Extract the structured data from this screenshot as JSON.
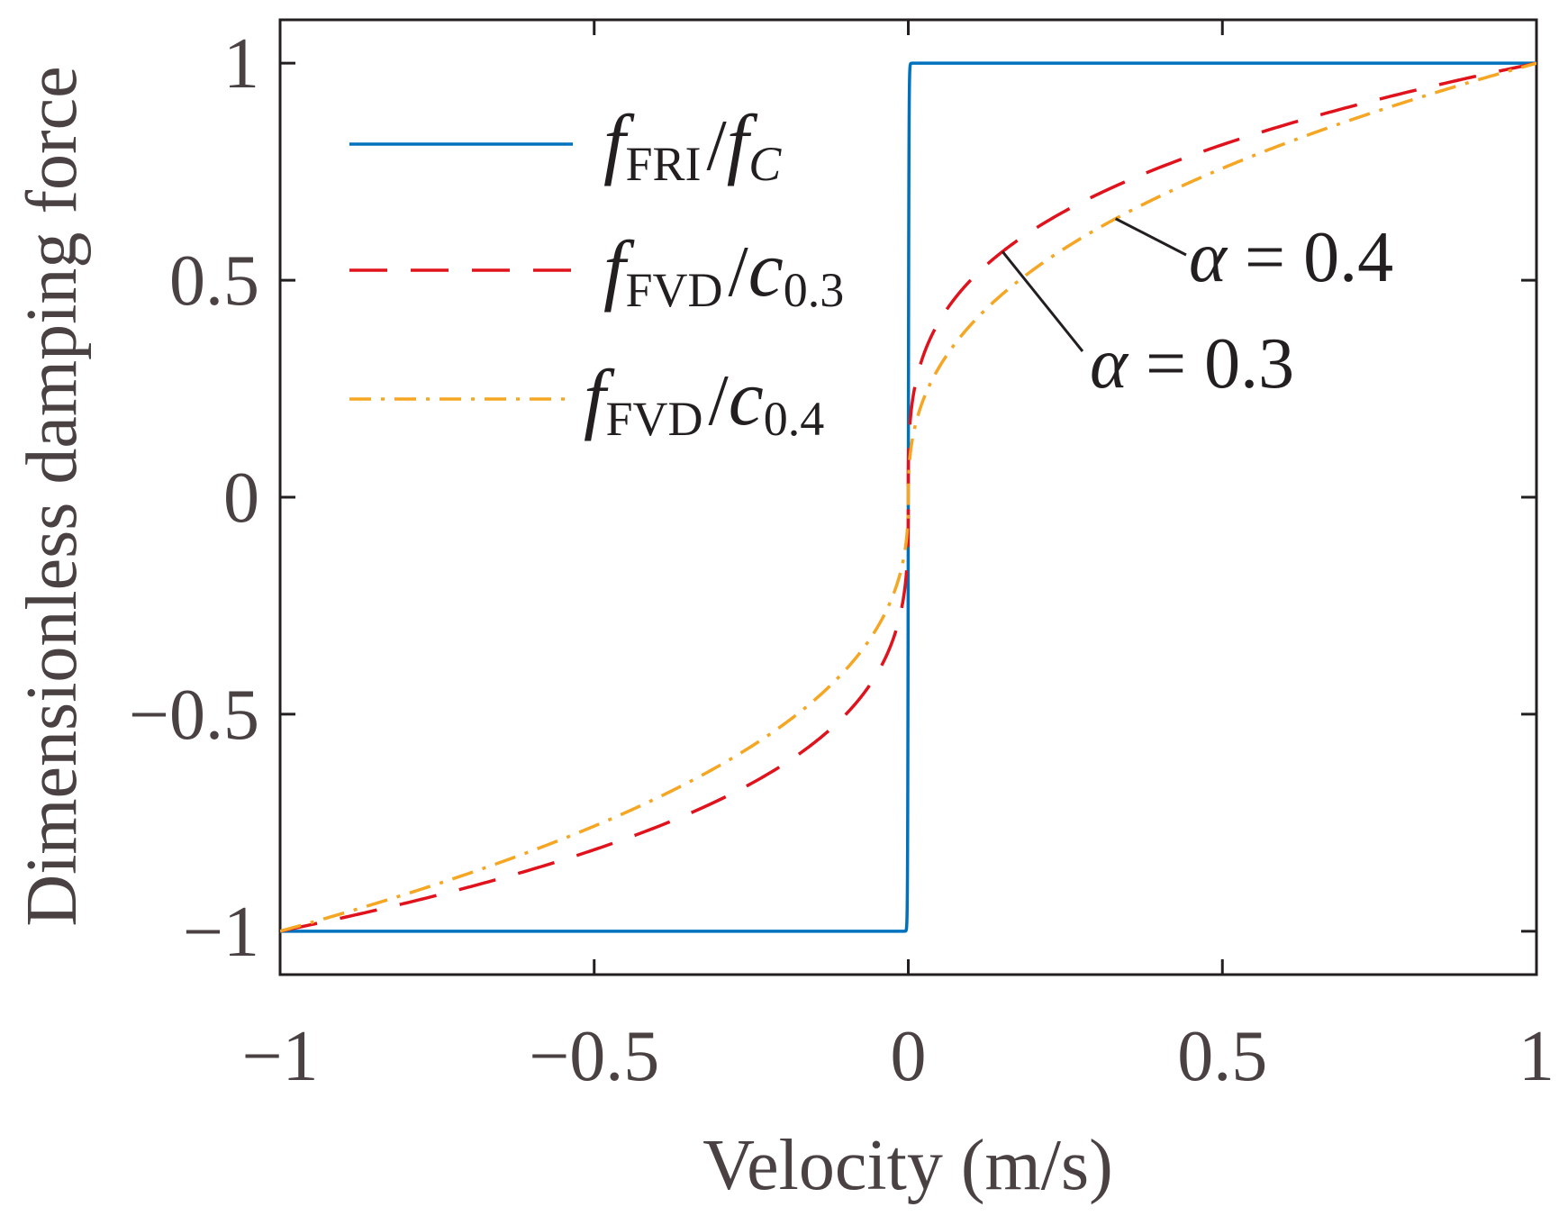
{
  "chart_data": {
    "type": "line",
    "xlabel": "Velocity (m/s)",
    "ylabel": "Dimensionless damping force",
    "xlim": [
      -1,
      1
    ],
    "ylim": [
      -1.1,
      1.1
    ],
    "grid": false,
    "legend_position": "top-left",
    "xticks": [
      -1,
      -0.5,
      0,
      0.5,
      1
    ],
    "xtick_labels": [
      "−1",
      "−0.5",
      "0",
      "0.5",
      "1"
    ],
    "yticks": [
      1,
      0.5,
      0,
      -0.5,
      -1
    ],
    "ytick_labels": [
      "1",
      "0.5",
      "0",
      "−0.5",
      "−1"
    ],
    "series": [
      {
        "name": "fFRI/fC",
        "legend": {
          "main": "f",
          "sub": "FRI",
          "slash": "/",
          "main2": "f",
          "sub2": "C"
        },
        "model": "tanh",
        "sharpness": 1000,
        "color": "#0072bd",
        "dash": "solid",
        "x": [
          -1,
          -0.5,
          -0.1,
          -0.01,
          -0.005,
          -0.002,
          0,
          0.002,
          0.005,
          0.01,
          0.1,
          0.5,
          1
        ],
        "values": [
          -1,
          -1,
          -1,
          -1,
          -0.9933,
          -0.964,
          0,
          0.964,
          0.9933,
          1,
          1,
          1,
          1
        ]
      },
      {
        "name": "fFVD/c0.3",
        "legend": {
          "main": "f",
          "sub": "FVD",
          "slash": "/",
          "main2": "c",
          "sub2": "0.3"
        },
        "model": "power",
        "alpha": 0.3,
        "color": "#e0121c",
        "dash": "dashed",
        "x": [
          -1,
          -0.75,
          -0.5,
          -0.25,
          -0.1,
          -0.01,
          0,
          0.01,
          0.1,
          0.25,
          0.5,
          0.75,
          1
        ],
        "values": [
          -1,
          -0.917,
          -0.812,
          -0.66,
          -0.501,
          -0.251,
          0,
          0.251,
          0.501,
          0.66,
          0.812,
          0.917,
          1
        ]
      },
      {
        "name": "fFVD/c0.4",
        "legend": {
          "main": "f",
          "sub": "FVD",
          "slash": "/",
          "main2": "c",
          "sub2": "0.4"
        },
        "model": "power",
        "alpha": 0.4,
        "color": "#f5a623",
        "dash": "dashdot",
        "x": [
          -1,
          -0.75,
          -0.5,
          -0.25,
          -0.1,
          -0.01,
          0,
          0.01,
          0.1,
          0.25,
          0.5,
          0.75,
          1
        ],
        "values": [
          -1,
          -0.891,
          -0.758,
          -0.574,
          -0.398,
          -0.158,
          0,
          0.158,
          0.398,
          0.574,
          0.758,
          0.891,
          1
        ]
      }
    ],
    "annotations": [
      {
        "symbol": "α",
        "text": " = 0.4",
        "series": "fFVD/c0.4",
        "at_x": 0.33
      },
      {
        "symbol": "α",
        "text": " = 0.3",
        "series": "fFVD/c0.3",
        "at_x": 0.15
      }
    ]
  }
}
